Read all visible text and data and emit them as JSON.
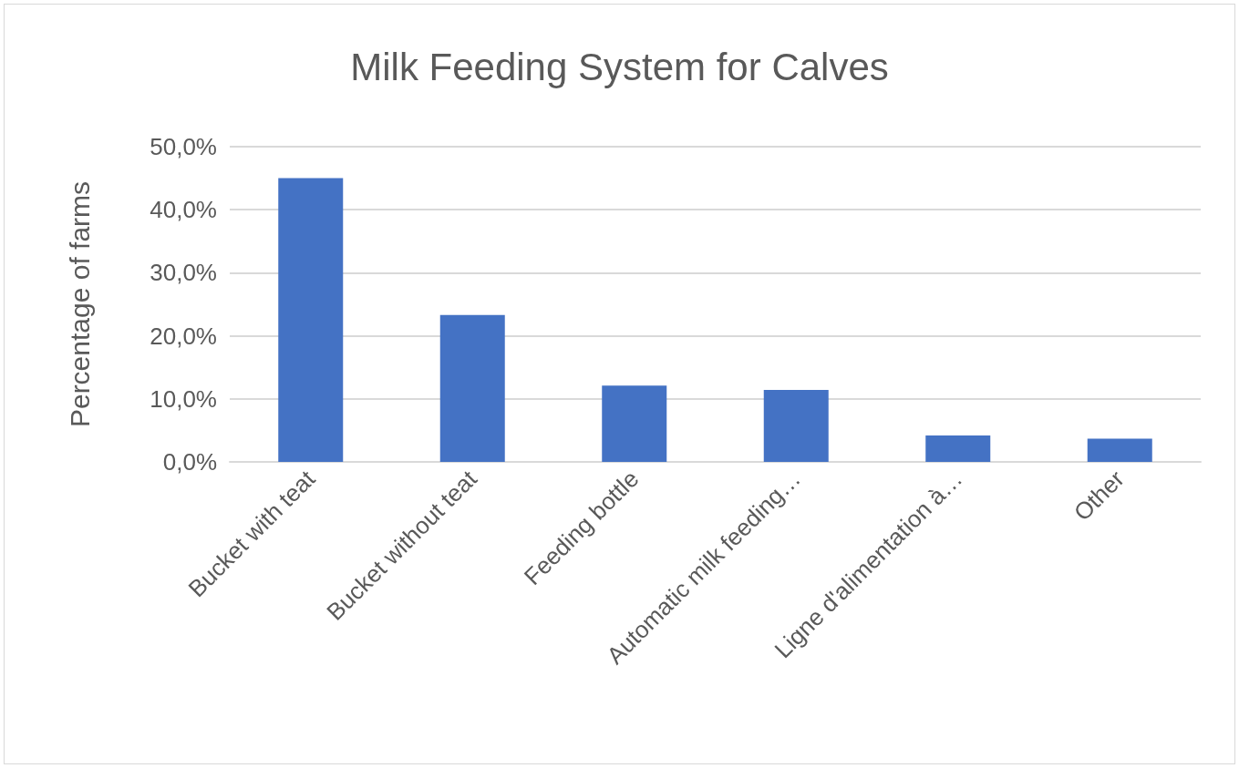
{
  "chart_data": {
    "type": "bar",
    "title": "Milk Feeding System for Calves",
    "ylabel": "Percentage of farms",
    "categories": [
      "Bucket with teat",
      "Bucket without teat",
      "Feeding bottle",
      "Automatic milk feeding…",
      "Ligne d'alimentation à…",
      "Other"
    ],
    "values": [
      45.0,
      23.3,
      12.1,
      11.4,
      4.2,
      3.7
    ],
    "color": "#4472c4",
    "ylim": [
      0,
      50
    ],
    "yticks": [
      {
        "value": 0,
        "label": "0,0%"
      },
      {
        "value": 10,
        "label": "10,0%"
      },
      {
        "value": 20,
        "label": "20,0%"
      },
      {
        "value": 30,
        "label": "30,0%"
      },
      {
        "value": 40,
        "label": "40,0%"
      },
      {
        "value": 50,
        "label": "50,0%"
      }
    ],
    "grid": "y"
  }
}
